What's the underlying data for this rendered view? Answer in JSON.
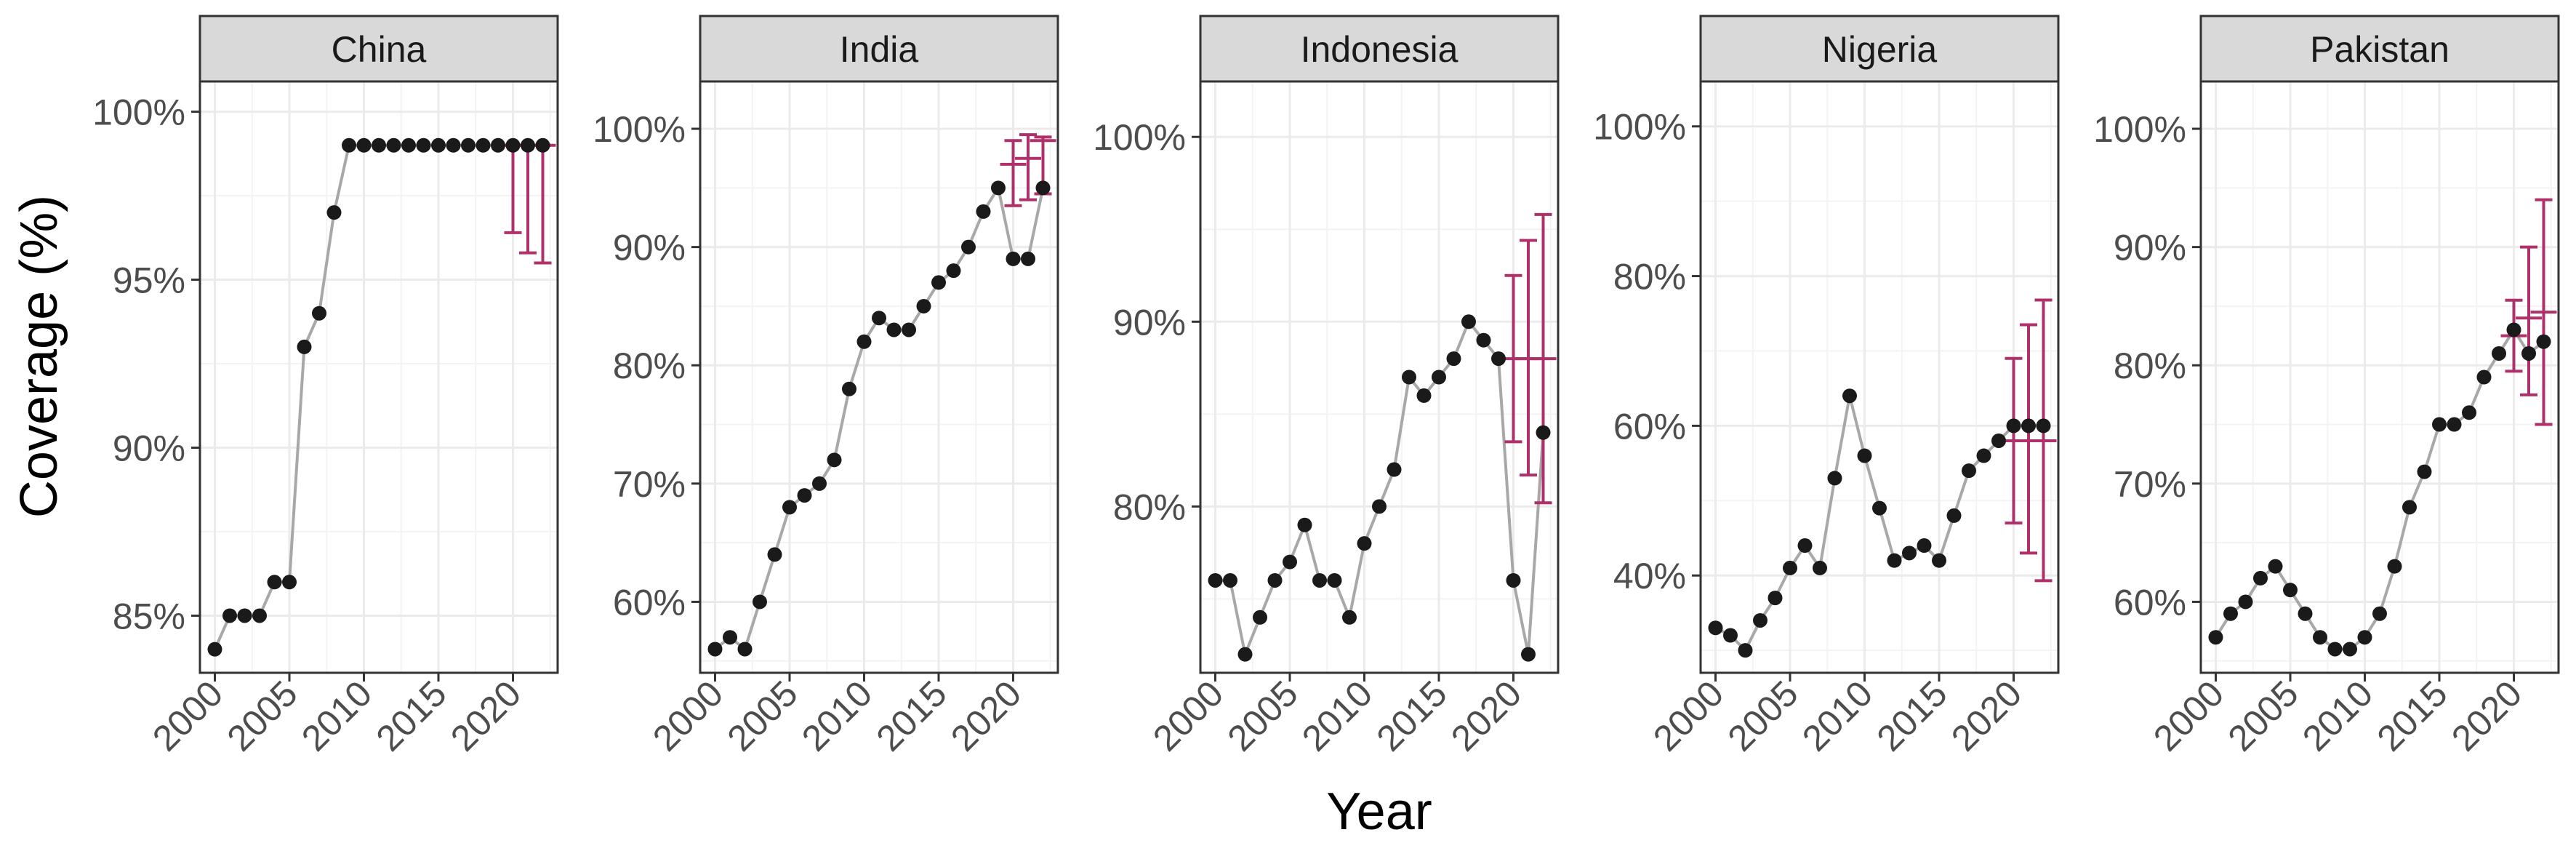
{
  "chart_data": {
    "type": "line",
    "facet_by": "country",
    "xlabel": "Year",
    "ylabel": "Coverage (%)",
    "x_ticks": [
      2000,
      2005,
      2010,
      2015,
      2020
    ],
    "x_range": [
      1999,
      2023
    ],
    "grid": true,
    "colors": {
      "point": "#1a1a1a",
      "line": "#a8a8a8",
      "errorbar": "#b0306a",
      "strip": "#d9d9d9",
      "grid": "#ebebeb",
      "border": "#333333"
    },
    "panels": [
      {
        "country": "China",
        "ylim": [
          83.3,
          100.9
        ],
        "y_ticks": [
          85,
          90,
          95,
          100
        ],
        "y_tick_labels": [
          "85%",
          "90%",
          "95%",
          "100%"
        ],
        "x": [
          2000,
          2001,
          2002,
          2003,
          2004,
          2005,
          2006,
          2007,
          2008,
          2009,
          2010,
          2011,
          2012,
          2013,
          2014,
          2015,
          2016,
          2017,
          2018,
          2019,
          2020,
          2021,
          2022
        ],
        "y": [
          84,
          85,
          85,
          85,
          86,
          86,
          93,
          94,
          97,
          99,
          99,
          99,
          99,
          99,
          99,
          99,
          99,
          99,
          99,
          99,
          99,
          99,
          99
        ],
        "estimates": [
          {
            "x": 2020,
            "mid": 99,
            "low": 96.4,
            "high": 99
          },
          {
            "x": 2021,
            "mid": 99,
            "low": 95.8,
            "high": 99
          },
          {
            "x": 2022,
            "mid": 99,
            "low": 95.5,
            "high": 99
          }
        ]
      },
      {
        "country": "India",
        "ylim": [
          54,
          104
        ],
        "y_ticks": [
          60,
          70,
          80,
          90,
          100
        ],
        "y_tick_labels": [
          "60%",
          "70%",
          "80%",
          "90%",
          "100%"
        ],
        "x": [
          2000,
          2001,
          2002,
          2003,
          2004,
          2005,
          2006,
          2007,
          2008,
          2009,
          2010,
          2011,
          2012,
          2013,
          2014,
          2015,
          2016,
          2017,
          2018,
          2019,
          2020,
          2021,
          2022
        ],
        "y": [
          56,
          57,
          56,
          60,
          64,
          68,
          69,
          70,
          72,
          78,
          82,
          84,
          83,
          83,
          85,
          87,
          88,
          90,
          93,
          95,
          89,
          89,
          95
        ],
        "estimates": [
          {
            "x": 2020,
            "mid": 97,
            "low": 93.5,
            "high": 99
          },
          {
            "x": 2021,
            "mid": 97.5,
            "low": 94,
            "high": 99.5
          },
          {
            "x": 2022,
            "mid": 99,
            "low": 94.5,
            "high": 99.3
          }
        ]
      },
      {
        "country": "Indonesia",
        "ylim": [
          71,
          103
        ],
        "y_ticks": [
          80,
          90,
          100
        ],
        "y_tick_labels": [
          "80%",
          "90%",
          "100%"
        ],
        "x": [
          2000,
          2001,
          2002,
          2003,
          2004,
          2005,
          2006,
          2007,
          2008,
          2009,
          2010,
          2011,
          2012,
          2013,
          2014,
          2015,
          2016,
          2017,
          2018,
          2019,
          2020,
          2021,
          2022
        ],
        "y": [
          76,
          76,
          72,
          74,
          76,
          77,
          79,
          76,
          76,
          74,
          78,
          80,
          82,
          87,
          86,
          87,
          88,
          90,
          89,
          88,
          76,
          72,
          84
        ],
        "estimates": [
          {
            "x": 2020,
            "mid": 88,
            "low": 83.5,
            "high": 92.5
          },
          {
            "x": 2021,
            "mid": 88,
            "low": 81.7,
            "high": 94.4
          },
          {
            "x": 2022,
            "mid": 88,
            "low": 80.2,
            "high": 95.8
          }
        ]
      },
      {
        "country": "Nigeria",
        "ylim": [
          27,
          106
        ],
        "y_ticks": [
          40,
          60,
          80,
          100
        ],
        "y_tick_labels": [
          "40%",
          "60%",
          "80%",
          "100%"
        ],
        "x": [
          2000,
          2001,
          2002,
          2003,
          2004,
          2005,
          2006,
          2007,
          2008,
          2009,
          2010,
          2011,
          2012,
          2013,
          2014,
          2015,
          2016,
          2017,
          2018,
          2019,
          2020,
          2021,
          2022
        ],
        "y": [
          33,
          32,
          30,
          34,
          37,
          41,
          44,
          41,
          53,
          64,
          56,
          49,
          42,
          43,
          44,
          42,
          48,
          54,
          56,
          58,
          60,
          60,
          60
        ],
        "estimates": [
          {
            "x": 2020,
            "mid": 58,
            "low": 47,
            "high": 69
          },
          {
            "x": 2021,
            "mid": 58,
            "low": 43,
            "high": 73.5
          },
          {
            "x": 2022,
            "mid": 58,
            "low": 39.3,
            "high": 76.8
          }
        ]
      },
      {
        "country": "Pakistan",
        "ylim": [
          54,
          104
        ],
        "y_ticks": [
          60,
          70,
          80,
          90,
          100
        ],
        "y_tick_labels": [
          "60%",
          "70%",
          "80%",
          "90%",
          "100%"
        ],
        "x": [
          2000,
          2001,
          2002,
          2003,
          2004,
          2005,
          2006,
          2007,
          2008,
          2009,
          2010,
          2011,
          2012,
          2013,
          2014,
          2015,
          2016,
          2017,
          2018,
          2019,
          2020,
          2021,
          2022
        ],
        "y": [
          57,
          59,
          60,
          62,
          63,
          61,
          59,
          57,
          56,
          56,
          57,
          59,
          63,
          68,
          71,
          75,
          75,
          76,
          79,
          81,
          83,
          81,
          82
        ],
        "estimates": [
          {
            "x": 2020,
            "mid": 82.5,
            "low": 79.5,
            "high": 85.5
          },
          {
            "x": 2021,
            "mid": 84,
            "low": 77.5,
            "high": 90
          },
          {
            "x": 2022,
            "mid": 84.5,
            "low": 75,
            "high": 94
          }
        ]
      }
    ]
  }
}
